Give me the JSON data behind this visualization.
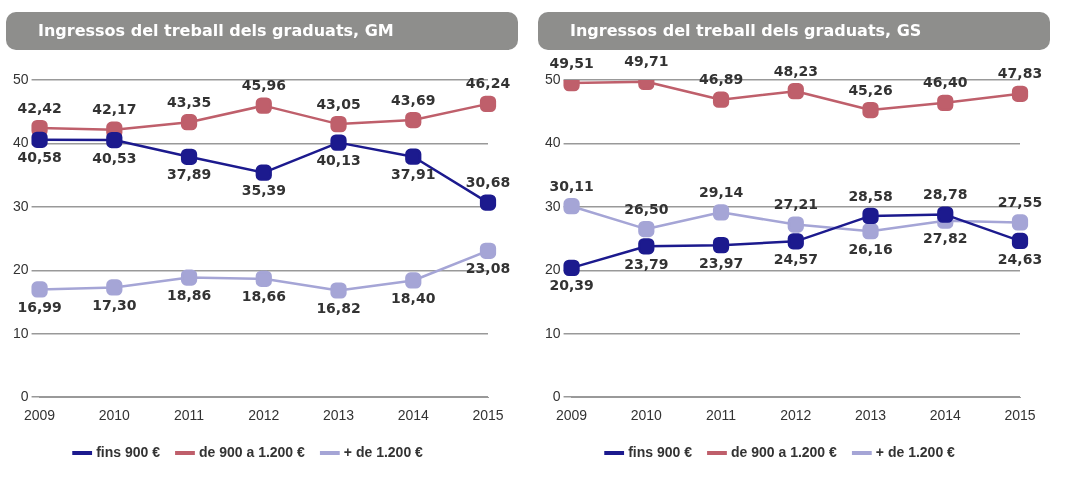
{
  "chart_data": [
    {
      "type": "line",
      "title": "Ingressos del treball dels graduats, GM",
      "categories": [
        "2009",
        "2010",
        "2011",
        "2012",
        "2013",
        "2014",
        "2015"
      ],
      "series": [
        {
          "name": "fins 900 €",
          "color": "#1c1a8e",
          "values": [
            40.58,
            40.53,
            37.89,
            35.39,
            40.13,
            37.91,
            30.68
          ],
          "value_labels": [
            "40,58",
            "40,53",
            "37,89",
            "35,39",
            "40,13",
            "37,91",
            "30,68"
          ]
        },
        {
          "name": "de 900 a 1.200 €",
          "color": "#bf5f6b",
          "values": [
            42.42,
            42.17,
            43.35,
            45.96,
            43.05,
            43.69,
            46.24
          ],
          "value_labels": [
            "42,42",
            "42,17",
            "43,35",
            "45,96",
            "43,05",
            "43,69",
            "46,24"
          ]
        },
        {
          "name": "+ de 1.200 €",
          "color": "#a5a5d6",
          "values": [
            16.99,
            17.3,
            18.86,
            18.66,
            16.82,
            18.4,
            23.08
          ],
          "value_labels": [
            "16,99",
            "17,30",
            "18,86",
            "18,66",
            "16,82",
            "18,40",
            "23,08"
          ]
        }
      ],
      "ylim": [
        0,
        50
      ],
      "yticks": [
        0,
        10,
        20,
        30,
        40,
        50
      ],
      "grid": "y",
      "legend": "bottom",
      "marker": "square"
    },
    {
      "type": "line",
      "title": "Ingressos del treball dels graduats, GS",
      "categories": [
        "2009",
        "2010",
        "2011",
        "2012",
        "2013",
        "2014",
        "2015"
      ],
      "series": [
        {
          "name": "fins 900 €",
          "color": "#1c1a8e",
          "values": [
            20.39,
            23.79,
            23.97,
            24.57,
            28.58,
            28.78,
            24.63
          ],
          "value_labels": [
            "20,39",
            "23,79",
            "23,97",
            "24,57",
            "28,58",
            "28,78",
            "24,63"
          ]
        },
        {
          "name": "de 900 a 1.200 €",
          "color": "#bf5f6b",
          "values": [
            49.51,
            49.71,
            46.89,
            48.23,
            45.26,
            46.4,
            47.83
          ],
          "value_labels": [
            "49,51",
            "49,71",
            "46,89",
            "48,23",
            "45,26",
            "46,40",
            "47,83"
          ]
        },
        {
          "name": "+ de 1.200 €",
          "color": "#a5a5d6",
          "values": [
            30.11,
            26.5,
            29.14,
            27.21,
            26.16,
            27.82,
            27.55
          ],
          "value_labels": [
            "30,11",
            "26,50",
            "29,14",
            "27,21",
            "26,16",
            "27,82",
            "27,55"
          ]
        }
      ],
      "ylim": [
        0,
        50
      ],
      "yticks": [
        0,
        10,
        20,
        30,
        40,
        50
      ],
      "grid": "y",
      "legend": "bottom",
      "marker": "square"
    }
  ]
}
